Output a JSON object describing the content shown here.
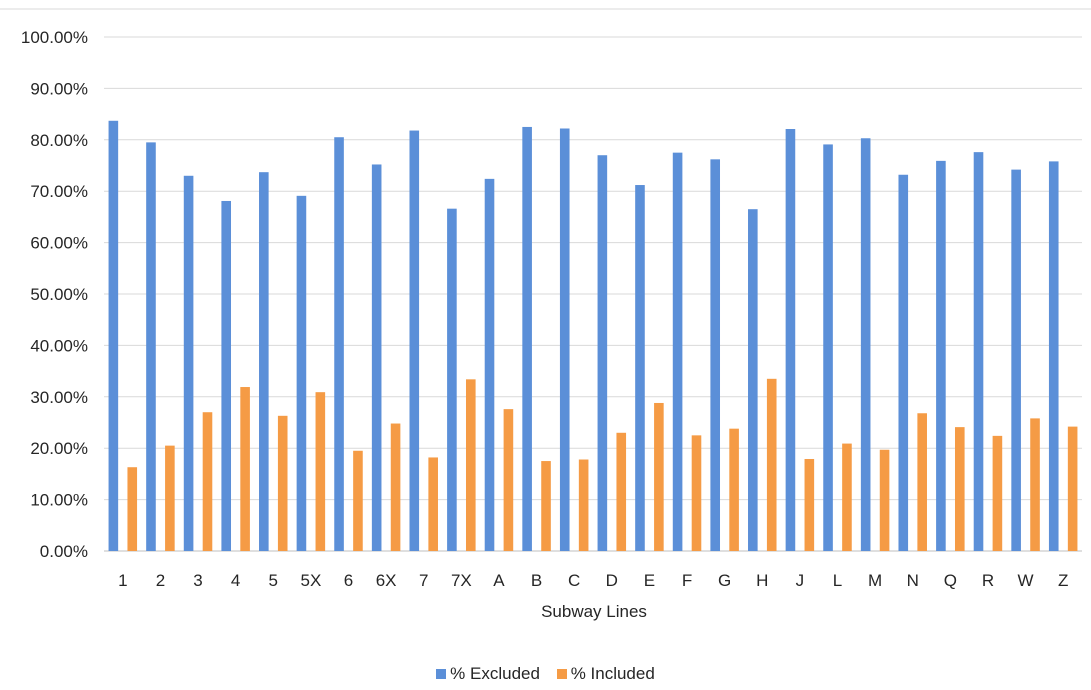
{
  "chart_data": {
    "type": "bar",
    "title": "",
    "xlabel": "Subway Lines",
    "ylabel": "",
    "ylim": [
      0,
      1
    ],
    "ytick_step": 0.1,
    "ytick_labels": [
      "0.00%",
      "10.00%",
      "20.00%",
      "30.00%",
      "40.00%",
      "50.00%",
      "60.00%",
      "70.00%",
      "80.00%",
      "90.00%",
      "100.00%"
    ],
    "grid": true,
    "legend_position": "bottom",
    "categories": [
      "1",
      "2",
      "3",
      "4",
      "5",
      "5X",
      "6",
      "6X",
      "7",
      "7X",
      "A",
      "B",
      "C",
      "D",
      "E",
      "F",
      "G",
      "H",
      "J",
      "L",
      "M",
      "N",
      "Q",
      "R",
      "W",
      "Z"
    ],
    "series": [
      {
        "name": "% Excluded",
        "color": "#5b8fd8",
        "values": [
          0.837,
          0.795,
          0.73,
          0.681,
          0.737,
          0.691,
          0.805,
          0.752,
          0.818,
          0.666,
          0.724,
          0.825,
          0.822,
          0.77,
          0.712,
          0.775,
          0.762,
          0.665,
          0.821,
          0.791,
          0.803,
          0.732,
          0.759,
          0.776,
          0.742,
          0.758
        ]
      },
      {
        "name": "% Included",
        "color": "#f59b45",
        "values": [
          0.163,
          0.205,
          0.27,
          0.319,
          0.263,
          0.309,
          0.195,
          0.248,
          0.182,
          0.334,
          0.276,
          0.175,
          0.178,
          0.23,
          0.288,
          0.225,
          0.238,
          0.335,
          0.179,
          0.209,
          0.197,
          0.268,
          0.241,
          0.224,
          0.258,
          0.242
        ]
      }
    ]
  }
}
